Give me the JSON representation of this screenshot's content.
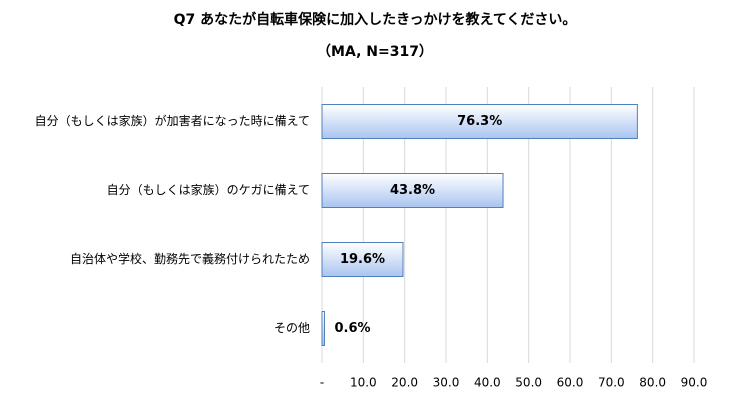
{
  "chart_data": {
    "type": "bar",
    "orientation": "horizontal",
    "title": "Q7 あなたが自転車保険に加入したきっかけを教えてください。",
    "subtitle": "（MA, N=317）",
    "categories": [
      "自分（もしくは家族）が加害者になった時に備えて",
      "自分（もしくは家族）のケガに備えて",
      "自治体や学校、勤務先で義務付けられたため",
      "その他"
    ],
    "values": [
      76.3,
      43.8,
      19.6,
      0.6
    ],
    "value_labels": [
      "76.3%",
      "43.8%",
      "19.6%",
      "0.6%"
    ],
    "color": "#c6d9f7",
    "xlim": [
      0,
      90
    ],
    "xticks": [
      {
        "value": 0,
        "label": "-"
      },
      {
        "value": 10,
        "label": "10.0"
      },
      {
        "value": 20,
        "label": "20.0"
      },
      {
        "value": 30,
        "label": "30.0"
      },
      {
        "value": 40,
        "label": "40.0"
      },
      {
        "value": 50,
        "label": "50.0"
      },
      {
        "value": 60,
        "label": "60.0"
      },
      {
        "value": 70,
        "label": "70.0"
      },
      {
        "value": 80,
        "label": "80.0"
      },
      {
        "value": 90,
        "label": "90.0"
      }
    ],
    "grid": true
  }
}
